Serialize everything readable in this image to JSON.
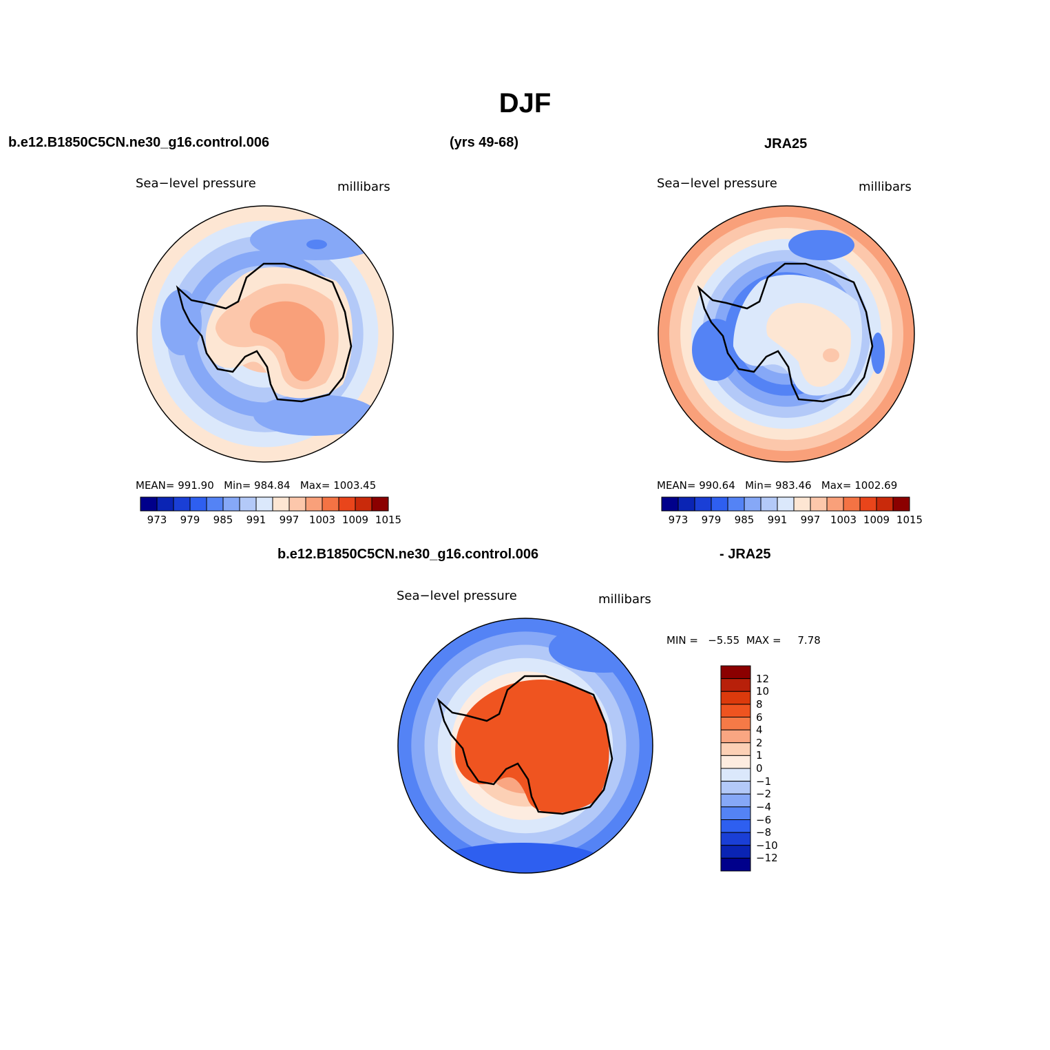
{
  "figure": {
    "title": "DJF",
    "model_case": "b.e12.B1850C5CN.ne30_g16.control.006",
    "years": "(yrs 49-68)",
    "obs_name": "JRA25",
    "diff_case": "b.e12.B1850C5CN.ne30_g16.control.006",
    "diff_obs": "- JRA25"
  },
  "panels": {
    "model": {
      "variable": "Sea−level pressure",
      "units": "millibars",
      "mean_text": "MEAN=",
      "mean": "991.90",
      "min_text": "Min=",
      "min": "984.84",
      "max_text": "Max=",
      "max": "1003.45"
    },
    "obs": {
      "variable": "Sea−level pressure",
      "units": "millibars",
      "mean_text": "MEAN=",
      "mean": "990.64",
      "min_text": "Min=",
      "min": "983.46",
      "max_text": "Max=",
      "max": "1002.69"
    },
    "diff": {
      "variable": "Sea−level pressure",
      "units": "millibars",
      "minmax_text": "MIN =   −5.55  MAX =     7.78"
    }
  },
  "colorbars": {
    "abs": {
      "colors": [
        "#00008b",
        "#0a24b4",
        "#1a3fd6",
        "#2e5ff0",
        "#5483f5",
        "#86a8f7",
        "#b3c9f8",
        "#dbe8fb",
        "#fde6d3",
        "#fcc7ab",
        "#f9a07a",
        "#f47344",
        "#e9451b",
        "#c92a0b",
        "#8b0000"
      ],
      "labels": [
        "973",
        "979",
        "985",
        "991",
        "997",
        "1003",
        "1009",
        "1015"
      ]
    },
    "diff": {
      "colors": [
        "#8b0000",
        "#b8200a",
        "#dc3a0c",
        "#ef5420",
        "#f57a47",
        "#f9a682",
        "#fcd0b5",
        "#fdece0",
        "#dbe8fb",
        "#b3c9f8",
        "#86a8f7",
        "#5483f5",
        "#2e5ff0",
        "#1a3fd6",
        "#0a24b4",
        "#00008b"
      ],
      "labels": [
        "12",
        "10",
        "8",
        "6",
        "4",
        "2",
        "1",
        "0",
        "−1",
        "−2",
        "−4",
        "−6",
        "−8",
        "−10",
        "−12"
      ]
    }
  },
  "maps": {
    "model": {
      "ring_colors": [
        "#fde6d3",
        "#dbe8fb",
        "#b3c9f8",
        "#86a8f7",
        "#b3c9f8",
        "#dbe8fb",
        "#fcc7ab",
        "#f9a07a"
      ]
    },
    "obs": {
      "ring_colors": [
        "#f9a07a",
        "#fcc7ab",
        "#fde6d3",
        "#dbe8fb",
        "#b3c9f8",
        "#86a8f7",
        "#5483f5",
        "#86a8f7",
        "#b3c9f8",
        "#dbe8fb",
        "#fde6d3"
      ]
    },
    "diff": {
      "ring_colors": [
        "#5483f5",
        "#86a8f7",
        "#b3c9f8",
        "#dbe8fb",
        "#fdece0",
        "#fcd0b5",
        "#f9a682",
        "#f57a47",
        "#ef5420"
      ]
    }
  }
}
